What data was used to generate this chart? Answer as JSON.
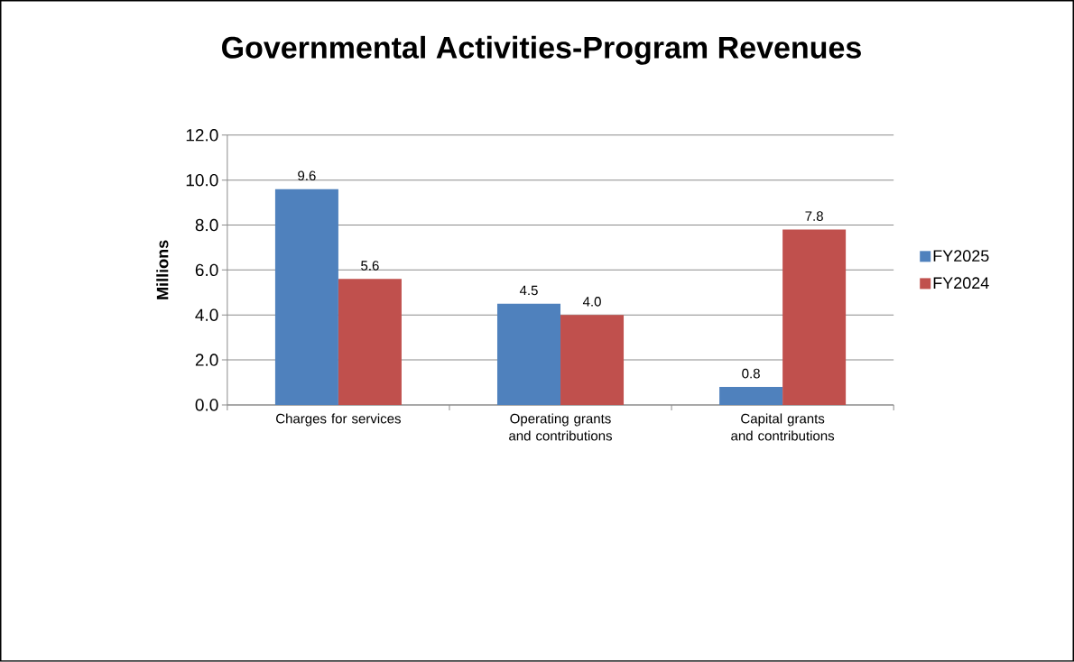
{
  "chart_data": {
    "type": "bar",
    "title": "Governmental Activities-Program Revenues",
    "ylabel": "Millions",
    "categories": [
      "Charges for services",
      "Operating grants and contributions",
      "Capital grants and contributions"
    ],
    "series": [
      {
        "name": "FY2025",
        "color": "#4f81bd",
        "values": [
          9.6,
          4.5,
          0.8
        ],
        "value_labels": [
          "9.6",
          "4.5",
          "0.8"
        ]
      },
      {
        "name": "FY2024",
        "color": "#c0504d",
        "values": [
          5.6,
          4.0,
          7.8
        ],
        "value_labels": [
          "5.6",
          "4.0",
          "7.8"
        ]
      }
    ],
    "ylim": [
      0,
      12
    ],
    "yticks": [
      {
        "value": 0,
        "label": "0.0"
      },
      {
        "value": 2,
        "label": "2.0"
      },
      {
        "value": 4,
        "label": "4.0"
      },
      {
        "value": 6,
        "label": "6.0"
      },
      {
        "value": 8,
        "label": "8.0"
      },
      {
        "value": 10,
        "label": "10.0"
      },
      {
        "value": 12,
        "label": "12.0"
      }
    ],
    "grid": "y",
    "legend": "right"
  }
}
